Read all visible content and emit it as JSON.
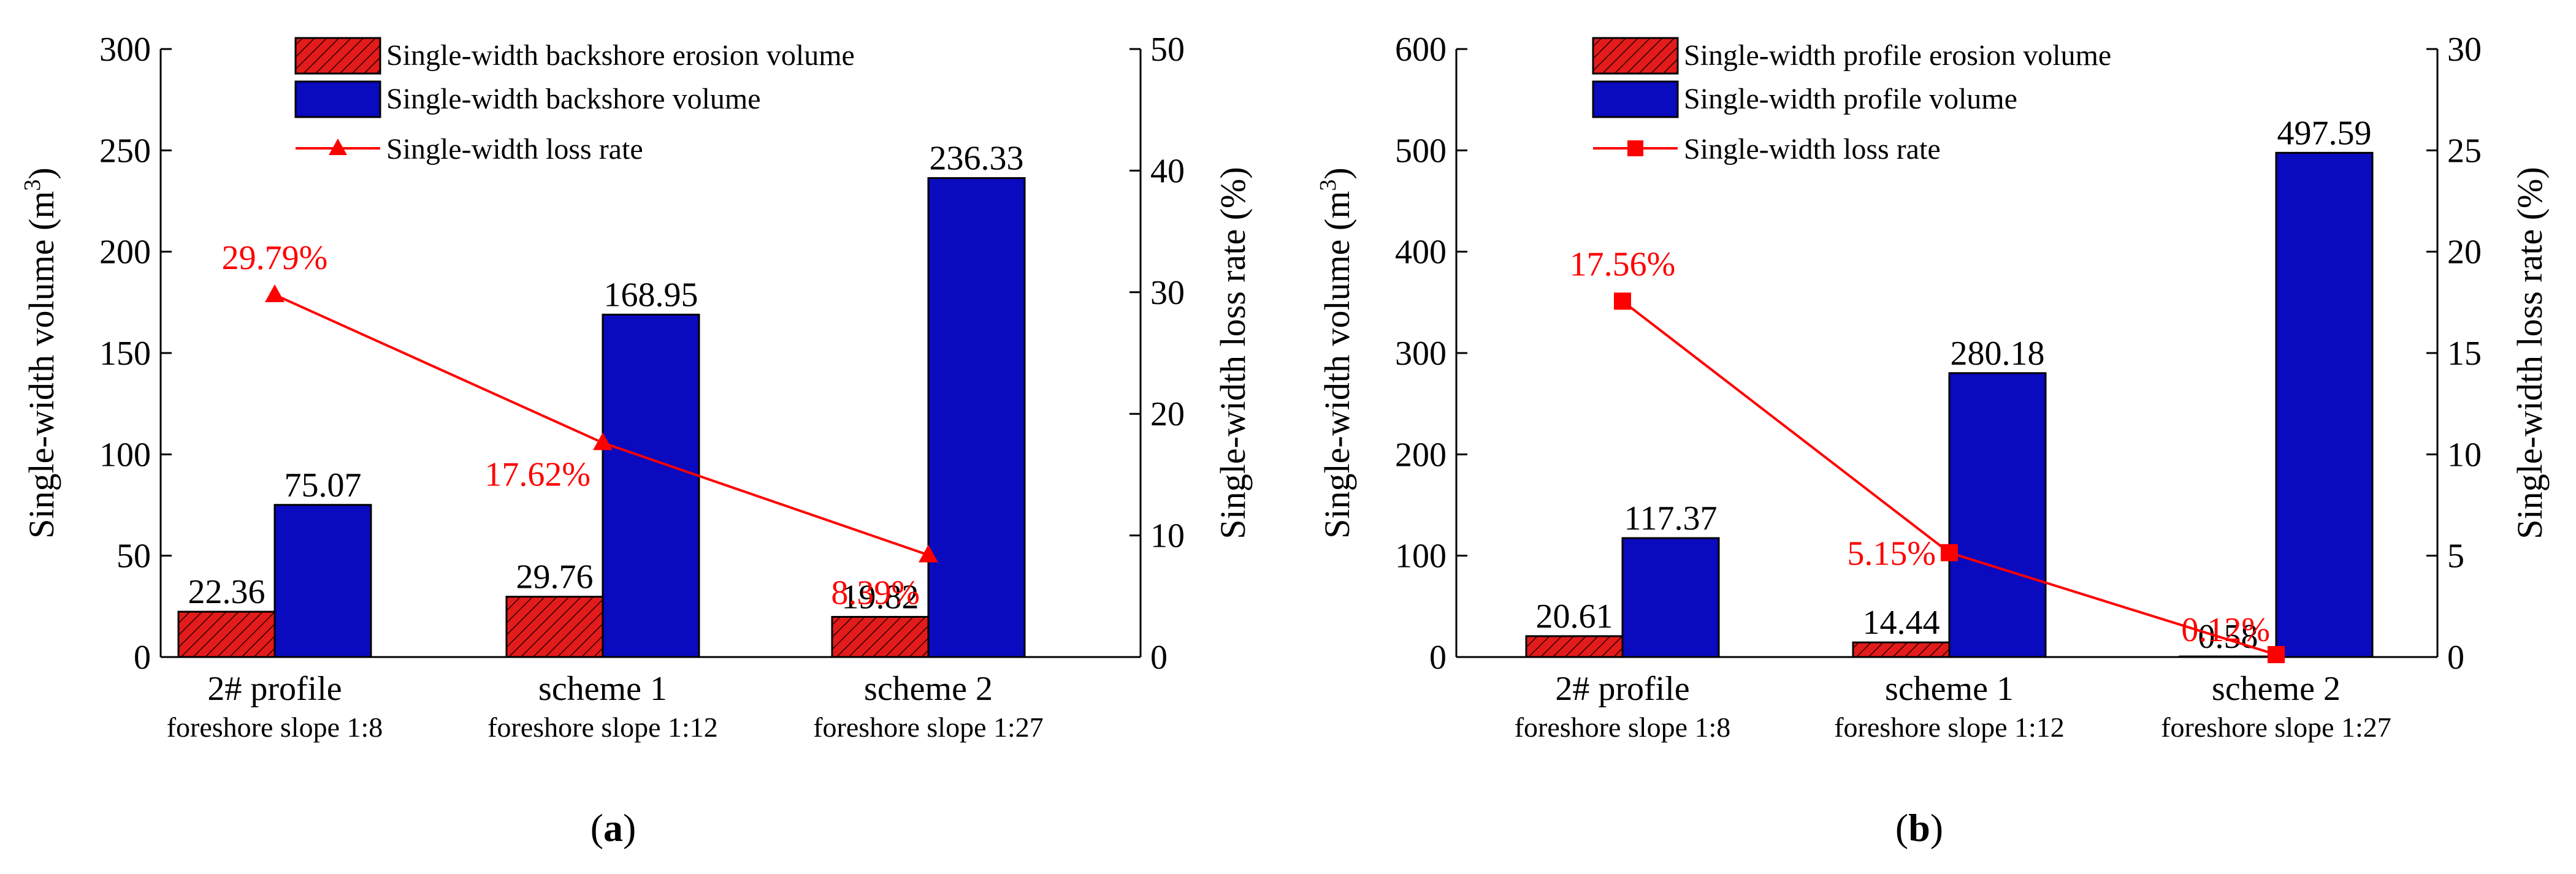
{
  "colors": {
    "erosion_fill": "#e31b1b",
    "volume_fill": "#0a0abf",
    "loss_line": "#ff0000",
    "axis": "#000000"
  },
  "chart_data": [
    {
      "panel_label": "(a)",
      "panel_letter": "a",
      "type": "bar",
      "categories": [
        {
          "name": "2# profile",
          "sub": "foreshore slope 1:8"
        },
        {
          "name": "scheme 1",
          "sub": "foreshore slope 1:12"
        },
        {
          "name": "scheme 2",
          "sub": "foreshore slope 1:27"
        }
      ],
      "y_left": {
        "label": "Single-width volume (m",
        "label_sup": "3",
        "label_close": ")",
        "ylim": [
          0,
          300
        ],
        "ticks": [
          0,
          50,
          100,
          150,
          200,
          250,
          300
        ]
      },
      "y_right": {
        "label": "Single-width loss rate (%)",
        "ylim": [
          0,
          50
        ],
        "ticks": [
          0,
          10,
          20,
          30,
          40,
          50
        ]
      },
      "series": [
        {
          "name": "Single-width backshore erosion volume",
          "type": "bar",
          "style": "hatched",
          "values": [
            22.36,
            29.76,
            19.82
          ],
          "labels": [
            "22.36",
            "29.76",
            "19.82"
          ]
        },
        {
          "name": "Single-width backshore volume",
          "type": "bar",
          "style": "solid",
          "values": [
            75.07,
            168.95,
            236.33
          ],
          "labels": [
            "75.07",
            "168.95",
            "236.33"
          ]
        },
        {
          "name": "Single-width loss rate",
          "type": "line",
          "axis": "right",
          "marker": "triangle",
          "values": [
            29.79,
            17.62,
            8.39
          ],
          "labels": [
            "29.79%",
            "17.62%",
            "8.39%"
          ]
        }
      ]
    },
    {
      "panel_label": "(b)",
      "panel_letter": "b",
      "type": "bar",
      "categories": [
        {
          "name": "2# profile",
          "sub": "foreshore slope 1:8"
        },
        {
          "name": "scheme 1",
          "sub": "foreshore slope 1:12"
        },
        {
          "name": "scheme 2",
          "sub": "foreshore slope 1:27"
        }
      ],
      "y_left": {
        "label": "Single-width volume (m",
        "label_sup": "3",
        "label_close": ")",
        "ylim": [
          0,
          600
        ],
        "ticks": [
          0,
          100,
          200,
          300,
          400,
          500,
          600
        ]
      },
      "y_right": {
        "label": "Single-width loss rate (%)",
        "ylim": [
          0,
          30
        ],
        "ticks": [
          0,
          5,
          10,
          15,
          20,
          25,
          30
        ]
      },
      "series": [
        {
          "name": "Single-width profile erosion volume",
          "type": "bar",
          "style": "hatched",
          "values": [
            20.61,
            14.44,
            0.58
          ],
          "labels": [
            "20.61",
            "14.44",
            "0.58"
          ]
        },
        {
          "name": "Single-width profile volume",
          "type": "bar",
          "style": "solid",
          "values": [
            117.37,
            280.18,
            497.59
          ],
          "labels": [
            "117.37",
            "280.18",
            "497.59"
          ]
        },
        {
          "name": "Single-width loss rate",
          "type": "line",
          "axis": "right",
          "marker": "square",
          "values": [
            17.56,
            5.15,
            0.12
          ],
          "labels": [
            "17.56%",
            "5.15%",
            "0.12%"
          ]
        }
      ]
    }
  ]
}
